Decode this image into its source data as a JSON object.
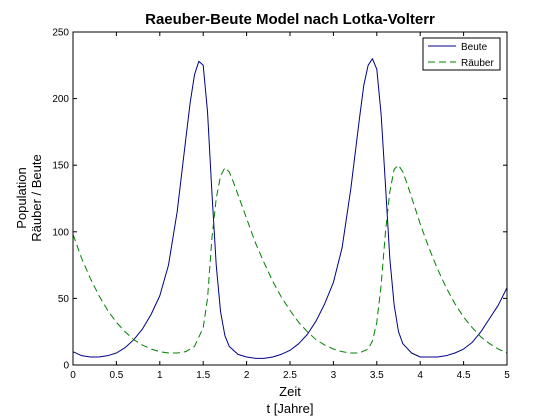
{
  "chart_data": {
    "type": "line",
    "title": "Raeuber-Beute Model nach Lotka-Volterr",
    "xlabel": [
      "Zeit",
      "t [Jahre]"
    ],
    "ylabel": [
      "Population",
      "Räuber / Beute"
    ],
    "xlim": [
      0,
      5
    ],
    "ylim": [
      0,
      250
    ],
    "xticks": [
      "0",
      "0.5",
      "1",
      "1.5",
      "2",
      "2.5",
      "3",
      "3.5",
      "4",
      "4.5",
      "5"
    ],
    "yticks": [
      "0",
      "50",
      "100",
      "150",
      "200",
      "250"
    ],
    "grid": false,
    "legend_position": "top-right",
    "series": [
      {
        "name": "Beute",
        "color": "#00008b",
        "dash": "solid",
        "x": [
          0,
          0.1,
          0.2,
          0.3,
          0.4,
          0.5,
          0.6,
          0.7,
          0.8,
          0.9,
          1.0,
          1.1,
          1.2,
          1.3,
          1.35,
          1.4,
          1.45,
          1.5,
          1.55,
          1.6,
          1.65,
          1.7,
          1.75,
          1.8,
          1.9,
          2.0,
          2.1,
          2.2,
          2.3,
          2.4,
          2.5,
          2.6,
          2.7,
          2.8,
          2.9,
          3.0,
          3.1,
          3.2,
          3.3,
          3.35,
          3.4,
          3.45,
          3.5,
          3.55,
          3.6,
          3.65,
          3.7,
          3.75,
          3.8,
          3.9,
          4.0,
          4.1,
          4.2,
          4.3,
          4.4,
          4.5,
          4.6,
          4.7,
          4.8,
          4.9,
          5.0
        ],
        "y": [
          10,
          7,
          6,
          6,
          7,
          9,
          13,
          19,
          27,
          38,
          52,
          75,
          115,
          170,
          197,
          218,
          228,
          225,
          190,
          130,
          75,
          40,
          22,
          14,
          8,
          6,
          5,
          5,
          6,
          8,
          11,
          16,
          23,
          33,
          46,
          62,
          88,
          132,
          185,
          210,
          225,
          230,
          222,
          188,
          135,
          80,
          45,
          25,
          16,
          9,
          6,
          6,
          6,
          7,
          9,
          12,
          17,
          25,
          35,
          45,
          58
        ]
      },
      {
        "name": "Räuber",
        "color": "#008000",
        "dash": "dashed",
        "x": [
          0,
          0.1,
          0.2,
          0.3,
          0.4,
          0.5,
          0.6,
          0.7,
          0.8,
          0.9,
          1.0,
          1.1,
          1.2,
          1.3,
          1.4,
          1.5,
          1.55,
          1.6,
          1.65,
          1.7,
          1.75,
          1.8,
          1.85,
          1.9,
          2.0,
          2.1,
          2.2,
          2.3,
          2.4,
          2.5,
          2.6,
          2.7,
          2.8,
          2.9,
          3.0,
          3.1,
          3.2,
          3.3,
          3.4,
          3.45,
          3.5,
          3.55,
          3.6,
          3.65,
          3.7,
          3.75,
          3.8,
          3.85,
          3.9,
          4.0,
          4.1,
          4.2,
          4.3,
          4.4,
          4.5,
          4.6,
          4.7,
          4.8,
          4.9,
          5.0
        ],
        "y": [
          98,
          80,
          65,
          52,
          41,
          32,
          25,
          19,
          15,
          12,
          10,
          9,
          9,
          10,
          14,
          28,
          50,
          95,
          125,
          142,
          148,
          145,
          137,
          128,
          110,
          92,
          77,
          63,
          51,
          41,
          32,
          25,
          19,
          15,
          12,
          10,
          9,
          9,
          12,
          18,
          32,
          60,
          100,
          130,
          147,
          150,
          145,
          136,
          126,
          106,
          88,
          72,
          58,
          46,
          36,
          28,
          21,
          16,
          12,
          9
        ]
      }
    ]
  }
}
